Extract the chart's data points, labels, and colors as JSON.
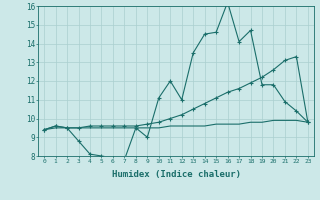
{
  "xlabel": "Humidex (Indice chaleur)",
  "ylabel": "",
  "bg_color": "#cce8e8",
  "grid_color": "#aacfcf",
  "line_color": "#1a6e6a",
  "xlim": [
    -0.5,
    23.5
  ],
  "ylim": [
    8,
    16
  ],
  "xticks": [
    0,
    1,
    2,
    3,
    4,
    5,
    6,
    7,
    8,
    9,
    10,
    11,
    12,
    13,
    14,
    15,
    16,
    17,
    18,
    19,
    20,
    21,
    22,
    23
  ],
  "yticks": [
    8,
    9,
    10,
    11,
    12,
    13,
    14,
    15,
    16
  ],
  "line1_x": [
    0,
    1,
    2,
    3,
    4,
    5,
    6,
    7,
    8,
    9,
    10,
    11,
    12,
    13,
    14,
    15,
    16,
    17,
    18,
    19,
    20,
    21,
    22,
    23
  ],
  "line1_y": [
    9.4,
    9.6,
    9.5,
    8.8,
    8.1,
    8.0,
    7.9,
    7.8,
    9.5,
    9.0,
    11.1,
    12.0,
    11.0,
    13.5,
    14.5,
    14.6,
    16.2,
    14.1,
    14.7,
    11.8,
    11.8,
    10.9,
    10.4,
    9.8
  ],
  "line2_x": [
    0,
    1,
    2,
    3,
    4,
    5,
    6,
    7,
    8,
    9,
    10,
    11,
    12,
    13,
    14,
    15,
    16,
    17,
    18,
    19,
    20,
    21,
    22,
    23
  ],
  "line2_y": [
    9.4,
    9.6,
    9.5,
    9.5,
    9.6,
    9.6,
    9.6,
    9.6,
    9.6,
    9.7,
    9.8,
    10.0,
    10.2,
    10.5,
    10.8,
    11.1,
    11.4,
    11.6,
    11.9,
    12.2,
    12.6,
    13.1,
    13.3,
    9.8
  ],
  "line3_x": [
    0,
    1,
    2,
    3,
    4,
    5,
    6,
    7,
    8,
    9,
    10,
    11,
    12,
    13,
    14,
    15,
    16,
    17,
    18,
    19,
    20,
    21,
    22,
    23
  ],
  "line3_y": [
    9.4,
    9.5,
    9.5,
    9.5,
    9.5,
    9.5,
    9.5,
    9.5,
    9.5,
    9.5,
    9.5,
    9.6,
    9.6,
    9.6,
    9.6,
    9.7,
    9.7,
    9.7,
    9.8,
    9.8,
    9.9,
    9.9,
    9.9,
    9.8
  ]
}
